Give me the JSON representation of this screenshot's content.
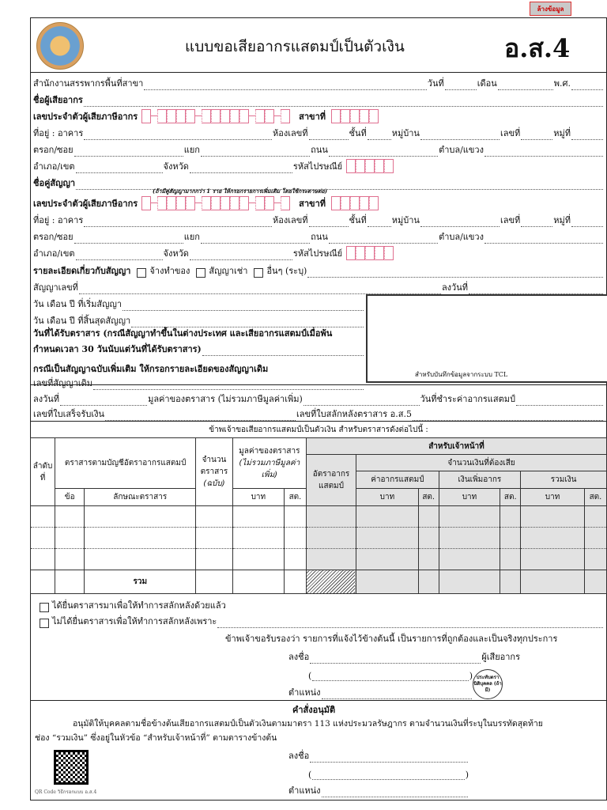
{
  "clear_button": "ล้างข้อมูล",
  "header": {
    "title": "แบบขอเสียอากรแสตมป์เป็นตัวเงิน",
    "form_code": "อ.ส.4"
  },
  "office": {
    "branch": "สำนักงานสรรพากรพื้นที่สาขา",
    "date": "วันที่",
    "month": "เดือน",
    "year": "พ.ศ."
  },
  "taxpayer": {
    "name": "ชื่อผู้เสียอากร",
    "tax_id": "เลขประจำตัวผู้เสียภาษีอากร",
    "branch_no": "สาขาที่"
  },
  "address": {
    "building": "ที่อยู่ : อาคาร",
    "room": "ห้องเลขที่",
    "floor": "ชั้นที่",
    "village": "หมู่บ้าน",
    "no": "เลขที่",
    "moo": "หมู่ที่",
    "soi": "ตรอก/ซอย",
    "junction": "แยก",
    "road": "ถนน",
    "subdistrict": "ตำบล/แขวง",
    "district": "อำเภอ/เขต",
    "province": "จังหวัด",
    "postcode": "รหัสไปรษณีย์"
  },
  "counterparty": {
    "name": "ชื่อคู่สัญญา",
    "note": "(ถ้ามีคู่สัญญามากกว่า 1 ราย ให้กรอกรายการเพิ่มเติม โดยใช้กระดาษต่อ)"
  },
  "contract": {
    "details": "รายละเอียดเกี่ยวกับสัญญา",
    "opt_hire": "จ้างทำของ",
    "opt_lease": "สัญญาเช่า",
    "opt_other": "อื่นๆ (ระบุ)",
    "number": "สัญญาเลขที่",
    "signed_date": "ลงวันที่",
    "start": "วัน เดือน ปี ที่เริ่มสัญญา",
    "end": "วัน เดือน ปี ที่สิ้นสุดสัญญา",
    "received1": "วันที่ได้รับตราสาร (กรณีสัญญาทำขึ้นในต่างประเทศ และเสียอากรแสตมป์เมื่อพ้น",
    "received2": "กำหนดเวลา 30 วันนับแต่วันที่ได้รับตราสาร)",
    "amend": "กรณีเป็นสัญญาฉบับเพิ่มเติม ให้กรอกรายละเอียดของสัญญาเดิม",
    "orig_no": "เลขที่สัญญาเดิม",
    "signed": "ลงวันที่",
    "value": "มูลค่าของตราสาร (ไม่รวมภาษีมูลค่าเพิ่ม)",
    "pay_date": "วันที่ชำระค่าอากรแสตมป์",
    "receipt_no": "เลขที่ใบเสร็จรับเงิน",
    "stamp_no": "เลขที่ใบสลักหลังตราสาร อ.ส.5",
    "tcl": "สำหรับบันทึกข้อมูลจากระบบ TCL"
  },
  "table": {
    "intro": "ข้าพเจ้าขอเสียอากรแสตมป์เป็นตัวเงิน สำหรับตราสารดังต่อไปนี้ :",
    "seq": "ลำดับที่",
    "instr": "ตราสารตามบัญชีอัตราอากรแสตมป์",
    "count": "จำนวนตราสาร",
    "count_unit": "(ฉบับ)",
    "value": "มูลค่าของตราสาร",
    "value_note": "(ไม่รวมภาษีมูลค่าเพิ่ม)",
    "officer": "สำหรับเจ้าหน้าที่",
    "rate": "อัตราอากรแสตมป์",
    "amount_due": "จำนวนเงินที่ต้องเสีย",
    "duty": "ค่าอากรแสตมป์",
    "surcharge": "เงินเพิ่มอากร",
    "total_money": "รวมเงิน",
    "item": "ข้อ",
    "nature": "ลักษณะตราสาร",
    "baht": "บาท",
    "satang": "สต.",
    "total": "รวม"
  },
  "declaration": {
    "submitted": "ได้ยื่นตราสารมาเพื่อให้ทำการสลักหลังด้วยแล้ว",
    "not_submitted": "ไม่ได้ยื่นตราสารเพื่อให้ทำการสลักหลังเพราะ",
    "certify": "ข้าพเจ้าขอรับรองว่า รายการที่แจ้งไว้ข้างต้นนี้ เป็นรายการที่ถูกต้องและเป็นจริงทุกประการ",
    "sign": "ลงชื่อ",
    "taxpayer": "ผู้เสียอากร",
    "position": "ตำแหน่ง",
    "stamp": "ประทับตรานิติบุคคล (ถ้ามี)"
  },
  "approval": {
    "title": "คำสั่งอนุมัติ",
    "text1": "อนุมัติให้บุคคลตามชื่อข้างต้นเสียอากรแสตมป์เป็นตัวเงินตามมาตรา 113 แห่งประมวลรัษฎากร ตามจำนวนเงินที่ระบุในบรรทัดสุดท้าย",
    "text2": "ช่อง “รวมเงิน” ซึ่งอยู่ในหัวข้อ “สำหรับเจ้าหน้าที่” ตามตารางข้างต้น",
    "sign": "ลงชื่อ",
    "position": "ตำแหน่ง",
    "qr_caption": "QR Code วิธีกรอกแบบ อ.ส.4"
  },
  "colors": {
    "box_border": "#e07090",
    "officer_bg": "#e2e2e2",
    "clear_text": "#cc0000"
  }
}
